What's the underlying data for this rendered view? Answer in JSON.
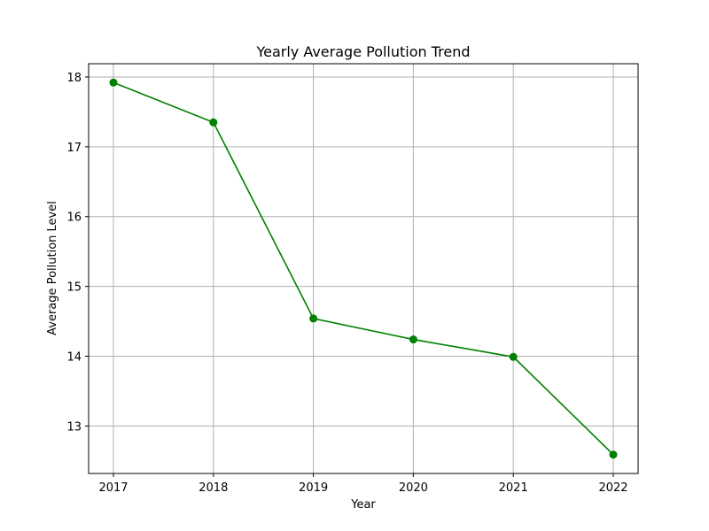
{
  "chart_data": {
    "type": "line",
    "title": "Yearly Average Pollution Trend",
    "xlabel": "Year",
    "ylabel": "Average Pollution Level",
    "x": [
      "2017",
      "2018",
      "2019",
      "2020",
      "2021",
      "2022"
    ],
    "series": [
      {
        "values": [
          17.92,
          17.35,
          14.54,
          14.24,
          13.99,
          12.59
        ]
      }
    ],
    "yticks": [
      "13",
      "14",
      "15",
      "16",
      "17",
      "18"
    ],
    "ylim": [
      12.32,
      18.19
    ],
    "grid": true,
    "legend": "none",
    "line_color": "#008000",
    "marker": "circle"
  }
}
